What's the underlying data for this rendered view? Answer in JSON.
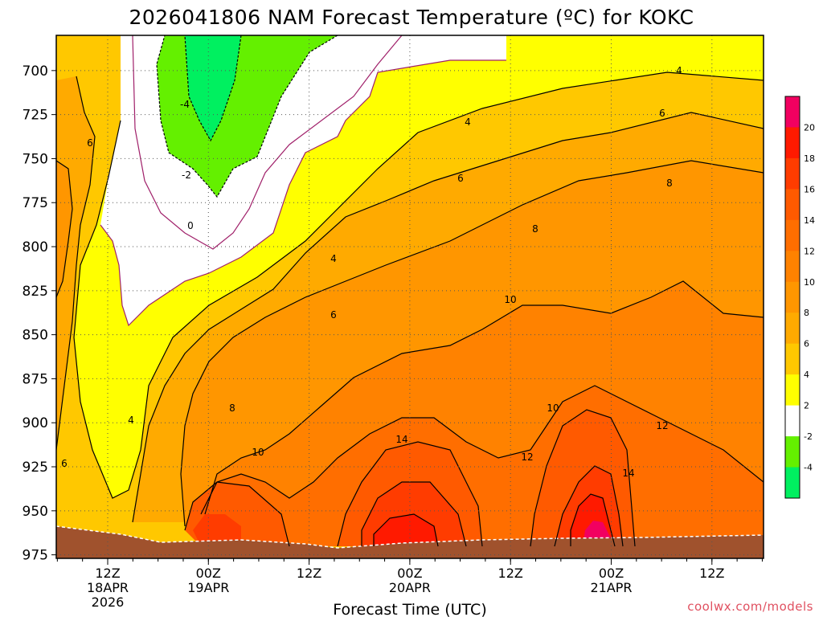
{
  "chart_data": {
    "type": "heatmap",
    "title": "2026041806 NAM Forecast Temperature (ºC) for KOKC",
    "xlabel": "Forecast Time (UTC)",
    "ylabel": "",
    "y_scale": "pressure (inverted)",
    "ylim": [
      977,
      680
    ],
    "y_ticks": [
      700,
      725,
      750,
      775,
      800,
      825,
      850,
      875,
      900,
      925,
      950,
      975
    ],
    "x_tick_lines": [
      [
        "12Z",
        "18APR",
        "2026"
      ],
      [
        "00Z",
        "19APR"
      ],
      [
        "12Z"
      ],
      [
        "00Z",
        "20APR"
      ],
      [
        "12Z"
      ],
      [
        "00Z",
        "21APR"
      ],
      [
        "12Z"
      ]
    ],
    "grid": true,
    "colorbar": {
      "ticks": [
        "20",
        "18",
        "16",
        "14",
        "12",
        "10",
        "8",
        "6",
        "4",
        "2",
        "-2",
        "-4"
      ],
      "colors": [
        "#f20060",
        "#ff1a00",
        "#ff3c00",
        "#ff5a00",
        "#ff6e00",
        "#ff8200",
        "#ff9600",
        "#ffaa00",
        "#ffc800",
        "#ffff00",
        "#ffffff",
        "#64f000",
        "#00f060"
      ]
    },
    "contour_labels": [
      "-4",
      "-2",
      "0",
      "4",
      "6",
      "8",
      "10",
      "12",
      "14"
    ],
    "terrain_color": "#a0522d"
  },
  "credit": "coolwx.com/models"
}
